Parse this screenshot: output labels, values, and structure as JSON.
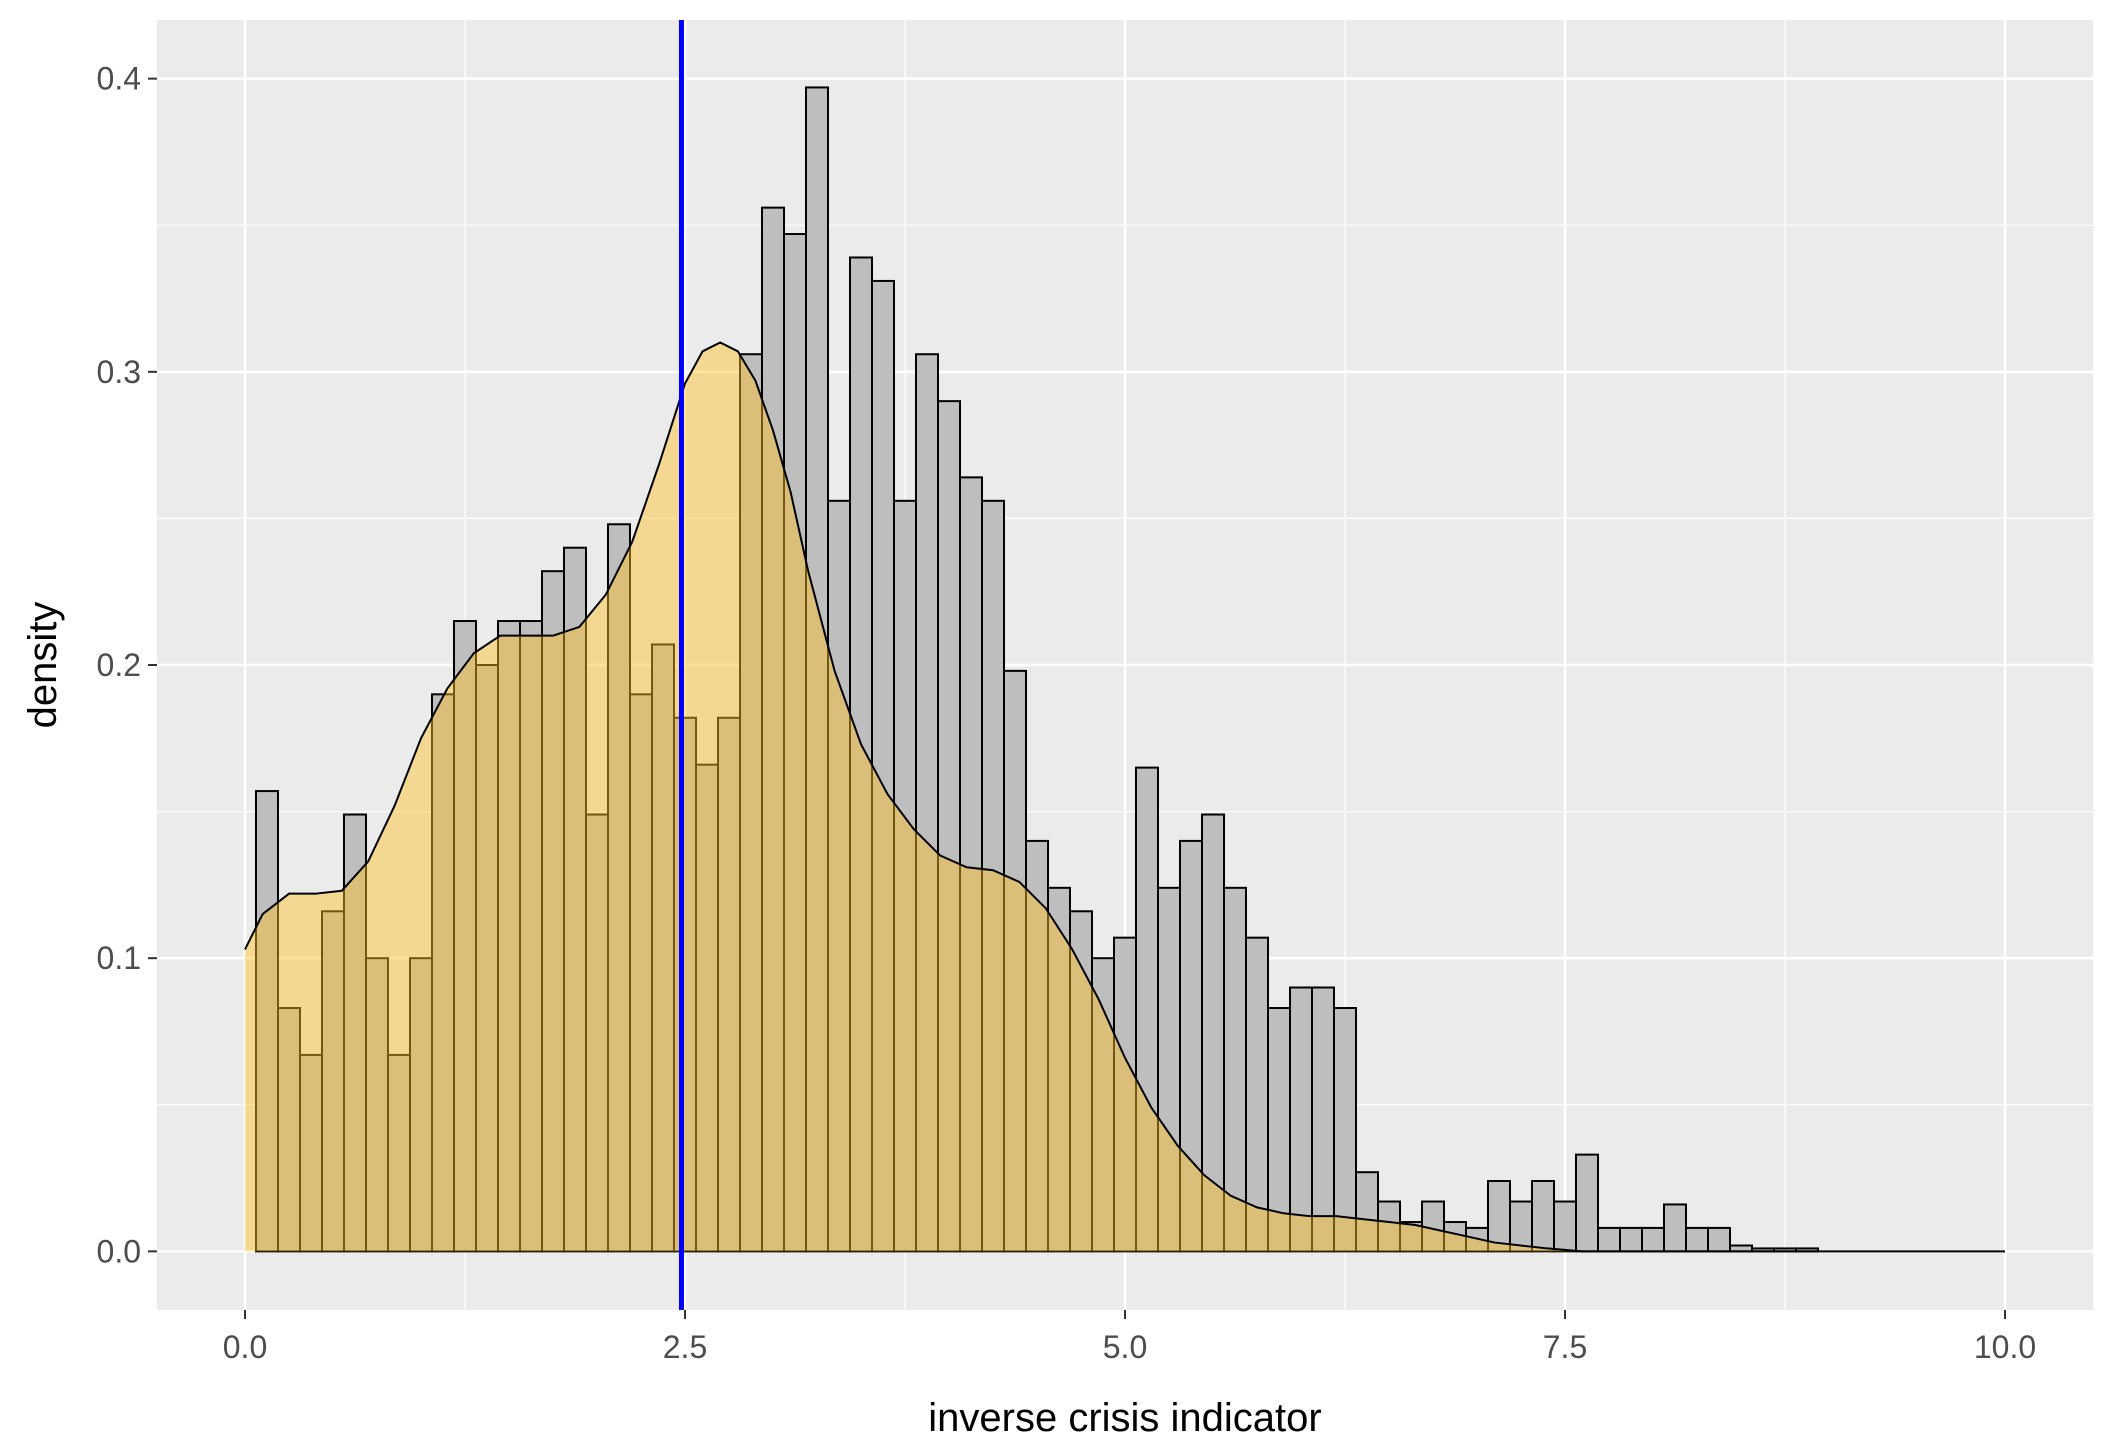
{
  "chart_data": {
    "type": "bar",
    "title": "",
    "xlabel": "inverse crisis indicator",
    "ylabel": "density",
    "xlim": [
      -0.5,
      10.5
    ],
    "ylim": [
      -0.02,
      0.42
    ],
    "x_ticks": [
      0.0,
      2.5,
      5.0,
      7.5,
      10.0
    ],
    "x_tick_labels": [
      "0.0",
      "2.5",
      "5.0",
      "7.5",
      "10.0"
    ],
    "y_ticks": [
      0.0,
      0.1,
      0.2,
      0.3,
      0.4
    ],
    "y_tick_labels": [
      "0.0",
      "0.1",
      "0.2",
      "0.3",
      "0.4"
    ],
    "grid": true,
    "panel_background": "#ebebeb",
    "grid_color": "#ffffff",
    "histogram": {
      "bin_width": 0.125,
      "bin_start": 0.0625,
      "fill": "#bebebe",
      "outline": "#000000",
      "density": [
        0.157,
        0.083,
        0.067,
        0.116,
        0.149,
        0.1,
        0.067,
        0.1,
        0.19,
        0.215,
        0.2,
        0.215,
        0.215,
        0.232,
        0.24,
        0.149,
        0.248,
        0.19,
        0.207,
        0.182,
        0.166,
        0.182,
        0.306,
        0.356,
        0.347,
        0.397,
        0.256,
        0.339,
        0.331,
        0.256,
        0.306,
        0.29,
        0.264,
        0.256,
        0.198,
        0.14,
        0.124,
        0.116,
        0.1,
        0.107,
        0.165,
        0.124,
        0.14,
        0.149,
        0.124,
        0.107,
        0.083,
        0.09,
        0.09,
        0.083,
        0.027,
        0.017,
        0.01,
        0.017,
        0.01,
        0.008,
        0.024,
        0.017,
        0.024,
        0.017,
        0.033,
        0.008,
        0.008,
        0.008,
        0.016,
        0.008,
        0.008,
        0.002,
        0.001,
        0.001,
        0.001,
        0.0
      ]
    },
    "density_curve": {
      "fill": "#ffc125",
      "fill_opacity": 0.45,
      "outline": "#000000",
      "x": [
        0.0,
        0.1,
        0.25,
        0.4,
        0.55,
        0.7,
        0.85,
        1.0,
        1.15,
        1.3,
        1.45,
        1.6,
        1.75,
        1.9,
        2.05,
        2.2,
        2.35,
        2.5,
        2.6,
        2.7,
        2.8,
        2.9,
        3.0,
        3.1,
        3.2,
        3.35,
        3.5,
        3.65,
        3.8,
        3.95,
        4.1,
        4.25,
        4.4,
        4.55,
        4.7,
        4.85,
        5.0,
        5.15,
        5.3,
        5.45,
        5.6,
        5.75,
        5.9,
        6.05,
        6.2,
        6.35,
        6.5,
        6.65,
        6.8,
        6.95,
        7.1,
        7.25,
        7.4,
        7.6,
        8.0,
        9.0,
        10.0
      ],
      "y": [
        0.103,
        0.115,
        0.122,
        0.122,
        0.123,
        0.133,
        0.152,
        0.175,
        0.192,
        0.204,
        0.21,
        0.21,
        0.21,
        0.213,
        0.224,
        0.242,
        0.268,
        0.296,
        0.307,
        0.31,
        0.307,
        0.297,
        0.28,
        0.259,
        0.232,
        0.198,
        0.173,
        0.156,
        0.144,
        0.135,
        0.131,
        0.13,
        0.126,
        0.117,
        0.103,
        0.086,
        0.066,
        0.049,
        0.036,
        0.026,
        0.019,
        0.015,
        0.013,
        0.012,
        0.012,
        0.011,
        0.01,
        0.009,
        0.007,
        0.005,
        0.003,
        0.002,
        0.001,
        0.0,
        0.0,
        0.0,
        0.0
      ]
    },
    "vline": {
      "x": 2.48,
      "color": "#0000ff"
    }
  }
}
